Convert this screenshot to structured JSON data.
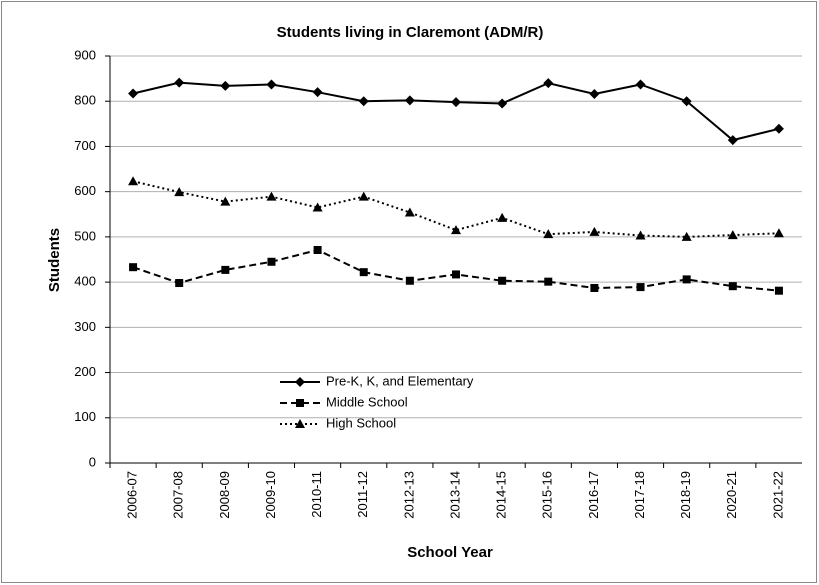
{
  "chart_data": {
    "type": "line",
    "title": "Students living in Claremont (ADM/R)",
    "x_label": "School Year",
    "y_label": "Students",
    "categories": [
      "2006-07",
      "2007-08",
      "2008-09",
      "2009-10",
      "2010-11",
      "2011-12",
      "2012-13",
      "2013-14",
      "2014-15",
      "2015-16",
      "2016-17",
      "2017-18",
      "2018-19",
      "2020-21",
      "2021-22"
    ],
    "series": [
      {
        "name": "Pre-K, K, and Elementary",
        "color": "#000000",
        "line_style": "solid",
        "marker": "diamond",
        "values": [
          817,
          841,
          834,
          837,
          820,
          800,
          802,
          798,
          795,
          840,
          816,
          837,
          800,
          714,
          739
        ]
      },
      {
        "name": "Middle School",
        "color": "#000000",
        "line_style": "dashed",
        "marker": "square",
        "values": [
          433,
          398,
          427,
          445,
          471,
          422,
          403,
          417,
          403,
          401,
          387,
          389,
          406,
          391,
          381
        ]
      },
      {
        "name": "High School",
        "color": "#000000",
        "line_style": "dotted",
        "marker": "triangle",
        "values": [
          623,
          599,
          578,
          589,
          565,
          589,
          554,
          515,
          542,
          506,
          511,
          503,
          500,
          504,
          508
        ]
      }
    ],
    "ylim": [
      0,
      900
    ],
    "yticks": [
      0,
      100,
      200,
      300,
      400,
      500,
      600,
      700,
      800,
      900
    ],
    "grid": true,
    "legend": "lower left"
  }
}
